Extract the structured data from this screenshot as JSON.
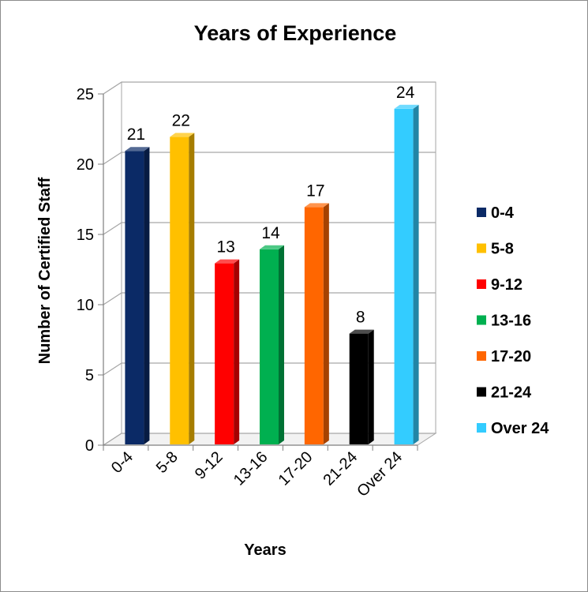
{
  "chart_data": {
    "type": "bar",
    "title": "Years of Experience",
    "xlabel": "Years",
    "ylabel": "Number of Certified Staff",
    "ylim": [
      0,
      25
    ],
    "yticks": [
      "0",
      "5",
      "10",
      "15",
      "20",
      "25"
    ],
    "grid": true,
    "legend_position": "right",
    "categories": [
      "0-4",
      "5-8",
      "9-12",
      "13-16",
      "17-20",
      "21-24",
      "Over 24"
    ],
    "values": [
      21,
      22,
      13,
      14,
      17,
      8,
      24
    ],
    "data_labels": [
      "21",
      "22",
      "13",
      "14",
      "17",
      "8",
      "24"
    ],
    "colors": [
      "#0b2a66",
      "#ffc000",
      "#ff0000",
      "#00b050",
      "#ff6600",
      "#000000",
      "#33ccff"
    ],
    "legend": [
      "0-4",
      "5-8",
      "9-12",
      "13-16",
      "17-20",
      "21-24",
      "Over 24"
    ]
  }
}
